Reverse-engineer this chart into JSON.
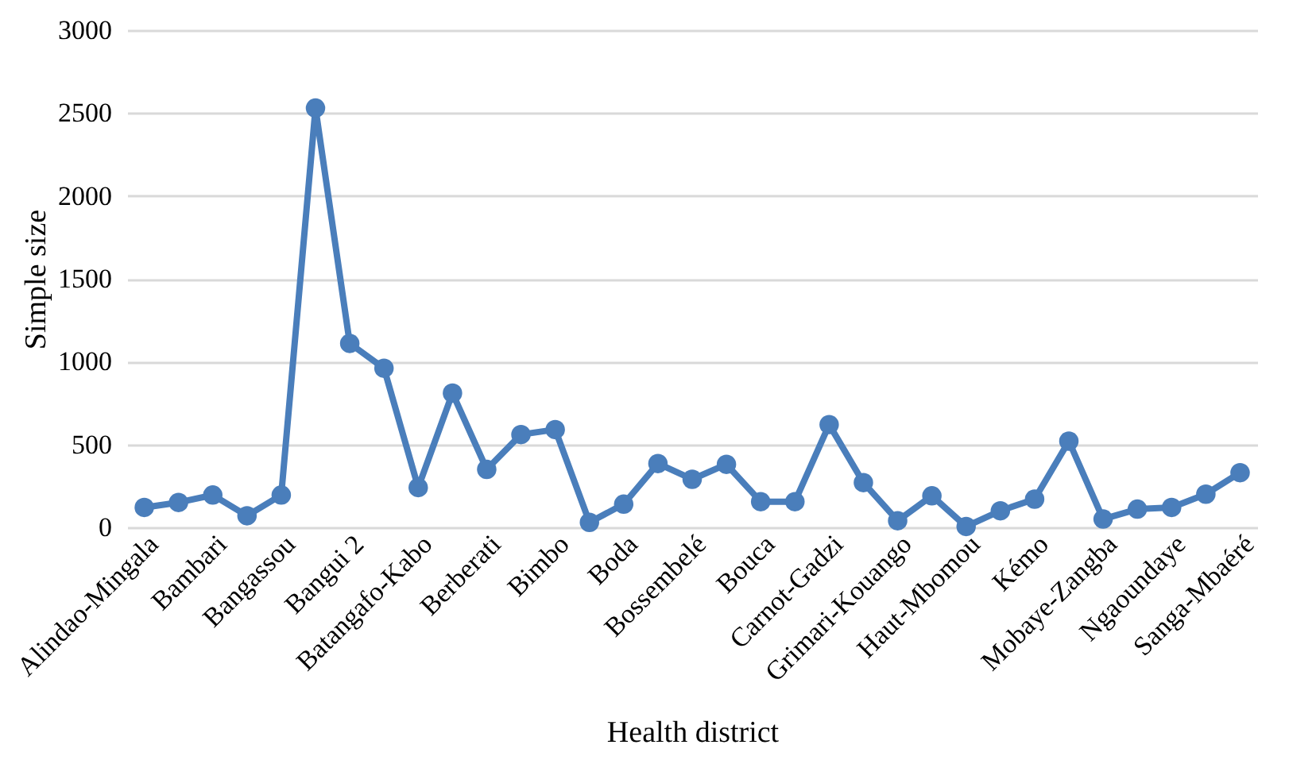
{
  "chart_data": {
    "type": "line",
    "xlabel": "Health district",
    "ylabel": "Simple size",
    "categories": [
      "Alindao-Mingala",
      null,
      "Bambari",
      null,
      "Bangassou",
      null,
      "Bangui 2",
      null,
      "Batangafo-Kabo",
      null,
      "Berberati",
      null,
      "Bimbo",
      null,
      "Boda",
      null,
      "Bossembelé",
      null,
      "Bouca",
      null,
      "Carnot-Gadzi",
      null,
      "Grimari-Kouango",
      null,
      "Haut-Mbomou",
      null,
      "Kémo",
      null,
      "Mobaye-Zangba",
      null,
      "Ngaoundaye",
      null,
      "Sanga-Mbaéré"
    ],
    "series": [
      {
        "color": "#4a7ebb",
        "values": [
          120,
          150,
          195,
          70,
          195,
          2530,
          1110,
          960,
          240,
          810,
          350,
          560,
          590,
          30,
          140,
          385,
          290,
          380,
          155,
          155,
          620,
          270,
          40,
          190,
          5,
          100,
          170,
          520,
          50,
          110,
          120,
          200,
          330
        ]
      }
    ],
    "ylim": [
      0,
      3000
    ],
    "yticks": [
      0,
      500,
      1000,
      1500,
      2000,
      2500,
      3000
    ],
    "grid": "y",
    "marker": "circle",
    "line_style": "solid"
  }
}
